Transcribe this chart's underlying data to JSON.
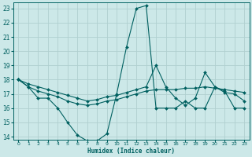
{
  "xlabel": "Humidex (Indice chaleur)",
  "bg_color": "#cce8e8",
  "grid_color": "#b0d0d0",
  "line_color": "#006060",
  "xlim": [
    -0.5,
    23.5
  ],
  "ylim": [
    13.8,
    23.4
  ],
  "x_ticks": [
    0,
    1,
    2,
    3,
    4,
    5,
    6,
    7,
    8,
    9,
    10,
    11,
    12,
    13,
    14,
    15,
    16,
    17,
    18,
    19,
    20,
    21,
    22,
    23
  ],
  "y_ticks": [
    14,
    15,
    16,
    17,
    18,
    19,
    20,
    21,
    22,
    23
  ],
  "series1_x": [
    0,
    1,
    2,
    3,
    4,
    5,
    6,
    7,
    8,
    9,
    10,
    11,
    12,
    13,
    14,
    15,
    16,
    17,
    18,
    19,
    20,
    21,
    22,
    23
  ],
  "series1_y": [
    18.0,
    17.5,
    16.7,
    16.7,
    16.0,
    15.0,
    14.1,
    13.7,
    13.7,
    14.2,
    17.0,
    20.3,
    23.0,
    23.2,
    16.0,
    16.0,
    16.0,
    16.5,
    16.0,
    16.0,
    17.5,
    17.2,
    16.0,
    16.0
  ],
  "series2_x": [
    0,
    1,
    2,
    3,
    4,
    5,
    6,
    7,
    8,
    9,
    10,
    11,
    12,
    13,
    14,
    15,
    16,
    17,
    18,
    19,
    20,
    21,
    22,
    23
  ],
  "series2_y": [
    18.0,
    17.5,
    17.2,
    17.0,
    16.8,
    16.5,
    16.3,
    16.2,
    16.3,
    16.5,
    16.6,
    16.8,
    17.0,
    17.2,
    17.3,
    17.3,
    17.3,
    17.4,
    17.4,
    17.5,
    17.4,
    17.3,
    17.2,
    17.1
  ],
  "series3_x": [
    0,
    1,
    2,
    3,
    4,
    5,
    6,
    7,
    8,
    9,
    10,
    11,
    12,
    13,
    14,
    15,
    16,
    17,
    18,
    19,
    20,
    21,
    22,
    23
  ],
  "series3_y": [
    18.0,
    17.7,
    17.5,
    17.3,
    17.1,
    16.9,
    16.7,
    16.5,
    16.6,
    16.8,
    16.9,
    17.1,
    17.3,
    17.5,
    19.0,
    17.5,
    16.7,
    16.2,
    16.7,
    18.5,
    17.5,
    17.1,
    17.0,
    16.5
  ]
}
